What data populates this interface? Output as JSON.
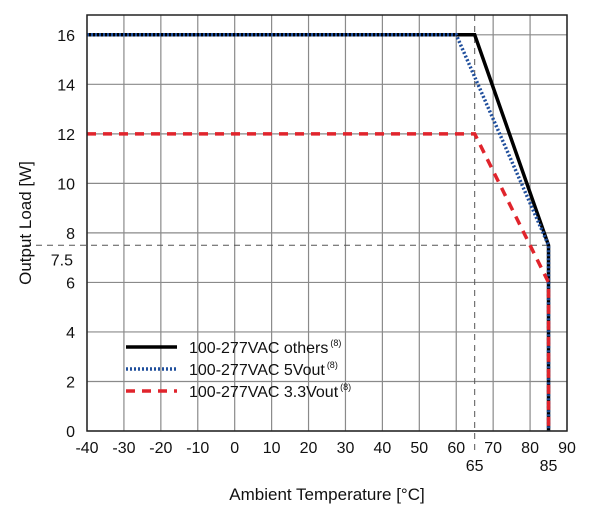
{
  "chart_data": {
    "type": "line",
    "title": "",
    "xlabel": "Ambient Temperature [°C]",
    "ylabel": "Output Load [W]",
    "xlim": [
      -40,
      90
    ],
    "ylim": [
      0,
      16.8
    ],
    "grid": true,
    "x_ticks": [
      -40,
      -30,
      -20,
      -10,
      0,
      10,
      20,
      30,
      40,
      50,
      60,
      70,
      80,
      90
    ],
    "y_ticks": [
      0,
      2,
      4,
      6,
      8,
      10,
      12,
      14,
      16
    ],
    "extra_x_labels": [
      65,
      85
    ],
    "extra_y_labels": [
      "7.5"
    ],
    "reference_lines": [
      {
        "axis": "x",
        "value": 65
      },
      {
        "axis": "y",
        "value": 7.5
      }
    ],
    "legend_position": "bottom-left",
    "series": [
      {
        "name": "100-277VAC others",
        "superscript": "(8)",
        "color": "#000000",
        "style": "solid",
        "points": [
          [
            -40,
            16
          ],
          [
            65,
            16
          ],
          [
            85,
            7.5
          ],
          [
            85,
            0
          ]
        ]
      },
      {
        "name": "100-277VAC 5Vout",
        "superscript": "(8)",
        "color": "#1f4e9c",
        "style": "dotted",
        "points": [
          [
            -40,
            16
          ],
          [
            60,
            16
          ],
          [
            85,
            7.5
          ],
          [
            85,
            0
          ]
        ]
      },
      {
        "name": "100-277VAC 3.3Vout",
        "superscript": "(8)",
        "color": "#e0242c",
        "style": "dashed",
        "points": [
          [
            -40,
            12
          ],
          [
            65,
            12
          ],
          [
            85,
            6
          ],
          [
            85,
            0
          ]
        ]
      }
    ]
  }
}
